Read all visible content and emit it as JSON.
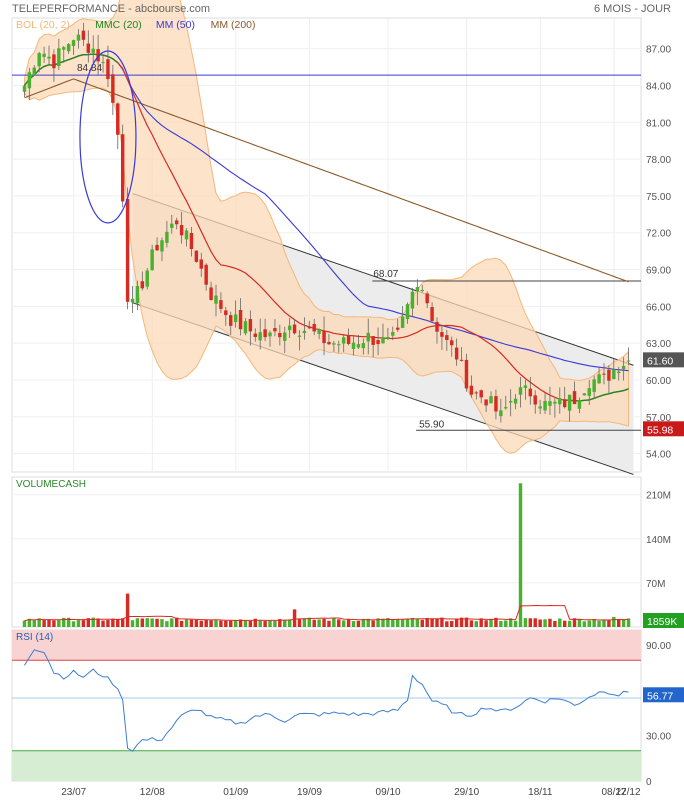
{
  "header": {
    "title": "TELEPERFORMANCE - abcbourse.com",
    "period": "6 MOIS - JOUR"
  },
  "colors": {
    "up": "#49b12f",
    "down": "#d62b23",
    "boll_fill": "#fbd9b8",
    "boll_line": "#f5b77a",
    "mmc20": "#1f8a1f",
    "mm50": "#3a3ad6",
    "mm200": "#8b5a2b",
    "channel_fill": "#ececec",
    "rsi_high": "#f9d2d2",
    "rsi_low": "#d6ecd3",
    "rsi_line": "#3a7fd0",
    "volume_avg": "#d62b23",
    "ellipse": "#3a3ad6",
    "hline_blue": "#3a3ad6",
    "price_badge": "#555555",
    "support_badge": "#c8191b",
    "volume_badge": "#22a022",
    "rsi_badge": "#2266cc"
  },
  "chart_data": [
    {
      "type": "candlestick",
      "panel": "price",
      "ylim": [
        52.5,
        89.5
      ],
      "yticks": [
        54,
        57,
        60,
        63,
        66,
        69,
        72,
        75,
        78,
        81,
        84,
        87
      ],
      "ytick_labels": [
        "54.00",
        "57.00",
        "60.00",
        "63.00",
        "66.00",
        "69.00",
        "72.00",
        "75.00",
        "78.00",
        "81.00",
        "84.00",
        "87.00"
      ],
      "legend": [
        "BOL (20, 2)",
        "MMC (20)",
        "MM (50)",
        "MM (200)"
      ],
      "last_price": "61.60",
      "support_level": "55.98",
      "annotations": [
        {
          "label": "84.84",
          "value": 84.84
        },
        {
          "label": "68.07",
          "value": 68.07
        },
        {
          "label": "55.90",
          "value": 55.9
        }
      ],
      "anchor_closes": [
        [
          0,
          84
        ],
        [
          3,
          87
        ],
        [
          6,
          86
        ],
        [
          10,
          88
        ],
        [
          14,
          87
        ],
        [
          17,
          85
        ],
        [
          19,
          80
        ],
        [
          20,
          75
        ],
        [
          21,
          67
        ],
        [
          22,
          66
        ],
        [
          24,
          68
        ],
        [
          27,
          71
        ],
        [
          31,
          73
        ],
        [
          35,
          70
        ],
        [
          38,
          67
        ],
        [
          42,
          65
        ],
        [
          46,
          64
        ],
        [
          50,
          63.5
        ],
        [
          54,
          64.5
        ],
        [
          58,
          64
        ],
        [
          62,
          63
        ],
        [
          66,
          63
        ],
        [
          70,
          63.5
        ],
        [
          74,
          63
        ],
        [
          76,
          63.5
        ],
        [
          79,
          67
        ],
        [
          81,
          68
        ],
        [
          83,
          65
        ],
        [
          86,
          63
        ],
        [
          88,
          62
        ],
        [
          91,
          59
        ],
        [
          94,
          58.5
        ],
        [
          97,
          57
        ],
        [
          100,
          59
        ],
        [
          103,
          59
        ],
        [
          106,
          58
        ],
        [
          109,
          58
        ],
        [
          112,
          58.5
        ],
        [
          115,
          60
        ],
        [
          118,
          60
        ],
        [
          121,
          61.3
        ],
        [
          123,
          61.6
        ]
      ]
    },
    {
      "type": "bar",
      "panel": "volume",
      "title": "VOLUMECASH",
      "ylim": [
        0,
        238
      ],
      "yticks": [
        70,
        140,
        210
      ],
      "ytick_labels": [
        "70M",
        "140M",
        "210M"
      ],
      "last_volume": "1859K",
      "spikes": [
        [
          21,
          53
        ],
        [
          55,
          28
        ],
        [
          101,
          228
        ],
        [
          120,
          16
        ]
      ],
      "base_volume": 12
    },
    {
      "type": "line",
      "panel": "rsi",
      "title": "RSI (14)",
      "ylim": [
        0,
        100
      ],
      "yticks": [
        0,
        30,
        90
      ],
      "ytick_labels": [
        "0",
        "30.00",
        "90.00"
      ],
      "levels": [
        55,
        20,
        80
      ],
      "last_rsi": "56.77",
      "values_anchors": [
        [
          0,
          77
        ],
        [
          2,
          88
        ],
        [
          4,
          86
        ],
        [
          6,
          72
        ],
        [
          8,
          69
        ],
        [
          10,
          72
        ],
        [
          12,
          69
        ],
        [
          14,
          73
        ],
        [
          16,
          70
        ],
        [
          18,
          65
        ],
        [
          20,
          55
        ],
        [
          21,
          22
        ],
        [
          22,
          21
        ],
        [
          24,
          27
        ],
        [
          28,
          28
        ],
        [
          32,
          43
        ],
        [
          35,
          48
        ],
        [
          38,
          42
        ],
        [
          41,
          40
        ],
        [
          44,
          38
        ],
        [
          47,
          43
        ],
        [
          50,
          44
        ],
        [
          53,
          40
        ],
        [
          56,
          44
        ],
        [
          60,
          44
        ],
        [
          64,
          45
        ],
        [
          68,
          44
        ],
        [
          72,
          45
        ],
        [
          76,
          47
        ],
        [
          78,
          54
        ],
        [
          79,
          70
        ],
        [
          81,
          64
        ],
        [
          83,
          53
        ],
        [
          86,
          49
        ],
        [
          88,
          44
        ],
        [
          91,
          44
        ],
        [
          94,
          49
        ],
        [
          97,
          46
        ],
        [
          100,
          49
        ],
        [
          103,
          55
        ],
        [
          106,
          53
        ],
        [
          109,
          55
        ],
        [
          112,
          50
        ],
        [
          115,
          56
        ],
        [
          118,
          60
        ],
        [
          121,
          57
        ],
        [
          123,
          59
        ]
      ]
    }
  ],
  "x_axis": {
    "labels": [
      "23/07",
      "12/08",
      "01/09",
      "19/09",
      "09/10",
      "29/10",
      "18/11",
      "08/12",
      "27/12"
    ]
  }
}
